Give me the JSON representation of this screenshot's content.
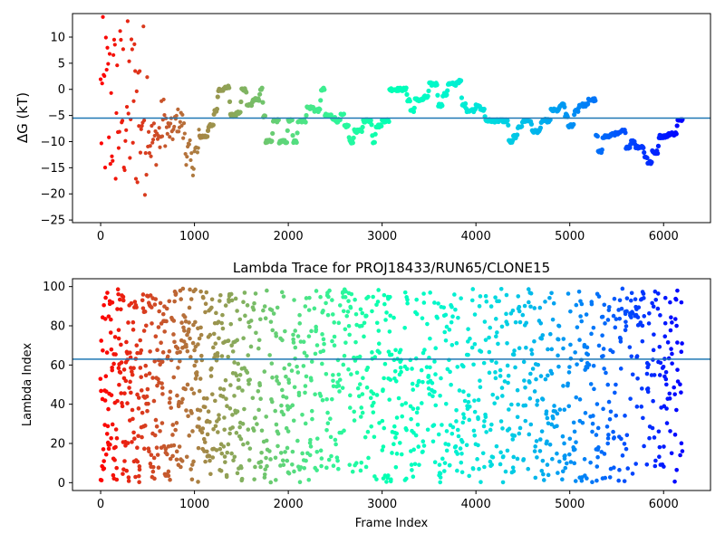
{
  "chart_data": [
    {
      "type": "scatter",
      "title": "",
      "xlabel": "",
      "ylabel": "ΔG (kT)",
      "xlim": [
        -300,
        6500
      ],
      "ylim": [
        -25.5,
        14.5
      ],
      "xticks": [
        0,
        1000,
        2000,
        3000,
        4000,
        5000,
        6000
      ],
      "yticks": [
        -25,
        -20,
        -15,
        -10,
        -5,
        0,
        5,
        10
      ],
      "hline": -5.5,
      "hline_color": "#1f77b4",
      "colormap": "rainbow (red at frame 0 → violet at last frame)",
      "n_frames": 6200,
      "segments": [
        [
          0,
          0.9
        ],
        [
          50,
          -4
        ],
        [
          120,
          2
        ],
        [
          180,
          -8
        ],
        [
          250,
          -12
        ],
        [
          330,
          -10
        ],
        [
          400,
          -14
        ],
        [
          470,
          -6
        ],
        [
          520,
          -10
        ],
        [
          600,
          -9
        ],
        [
          650,
          -6
        ],
        [
          700,
          -8
        ],
        [
          800,
          -6
        ],
        [
          880,
          -8
        ],
        [
          900,
          -12
        ],
        [
          960,
          -14
        ],
        [
          1000,
          -12
        ],
        [
          1050,
          -9
        ],
        [
          1150,
          -7
        ],
        [
          1210,
          -4
        ],
        [
          1250,
          0
        ],
        [
          1330,
          0.4
        ],
        [
          1380,
          -5
        ],
        [
          1450,
          -4.5
        ],
        [
          1500,
          0
        ],
        [
          1560,
          -3
        ],
        [
          1620,
          -2
        ],
        [
          1700,
          0
        ],
        [
          1730,
          -5
        ],
        [
          1760,
          -10
        ],
        [
          1840,
          -6
        ],
        [
          1880,
          -6
        ],
        [
          1900,
          -10
        ],
        [
          2000,
          -6
        ],
        [
          2050,
          -10
        ],
        [
          2100,
          -6
        ],
        [
          2200,
          -3.5
        ],
        [
          2280,
          -4
        ],
        [
          2350,
          0
        ],
        [
          2390,
          -5
        ],
        [
          2470,
          -5.5
        ],
        [
          2500,
          -6
        ],
        [
          2560,
          -5
        ],
        [
          2600,
          -7
        ],
        [
          2650,
          -10
        ],
        [
          2700,
          -8
        ],
        [
          2800,
          -6
        ],
        [
          2900,
          -10
        ],
        [
          2930,
          -7
        ],
        [
          3000,
          -6
        ],
        [
          3050,
          -6
        ],
        [
          3080,
          0
        ],
        [
          3200,
          0
        ],
        [
          3270,
          -2
        ],
        [
          3300,
          -4
        ],
        [
          3350,
          -2
        ],
        [
          3450,
          -1.5
        ],
        [
          3500,
          1
        ],
        [
          3600,
          -3
        ],
        [
          3650,
          -1
        ],
        [
          3700,
          1
        ],
        [
          3800,
          1.5
        ],
        [
          3850,
          -3
        ],
        [
          3900,
          -4
        ],
        [
          4000,
          -3
        ],
        [
          4050,
          -4
        ],
        [
          4100,
          -6
        ],
        [
          4200,
          -6
        ],
        [
          4300,
          -6
        ],
        [
          4350,
          -10
        ],
        [
          4400,
          -9
        ],
        [
          4450,
          -7
        ],
        [
          4500,
          -6
        ],
        [
          4600,
          -8
        ],
        [
          4700,
          -6
        ],
        [
          4750,
          -6
        ],
        [
          4800,
          -4
        ],
        [
          4900,
          -3
        ],
        [
          4950,
          -5
        ],
        [
          4980,
          -7
        ],
        [
          5050,
          -4
        ],
        [
          5100,
          -3
        ],
        [
          5150,
          -3
        ],
        [
          5200,
          -2
        ],
        [
          5250,
          -2
        ],
        [
          5280,
          -9
        ],
        [
          5300,
          -12
        ],
        [
          5350,
          -9
        ],
        [
          5450,
          -8.5
        ],
        [
          5550,
          -8
        ],
        [
          5600,
          -11
        ],
        [
          5650,
          -10
        ],
        [
          5700,
          -11
        ],
        [
          5800,
          -13
        ],
        [
          5830,
          -14
        ],
        [
          5880,
          -12
        ],
        [
          5950,
          -9
        ],
        [
          6050,
          -8.5
        ],
        [
          6150,
          -6
        ],
        [
          6200,
          -5.5
        ]
      ]
    },
    {
      "type": "scatter",
      "title": "Lambda Trace for PROJ18433/RUN65/CLONE15",
      "xlabel": "Frame Index",
      "ylabel": "Lambda Index",
      "xlim": [
        -300,
        6500
      ],
      "ylim": [
        -4,
        104
      ],
      "xticks": [
        0,
        1000,
        2000,
        3000,
        4000,
        5000,
        6000
      ],
      "yticks": [
        0,
        20,
        40,
        60,
        80,
        100
      ],
      "hline": 63,
      "hline_color": "#1f77b4",
      "colormap": "rainbow (red at frame 0 → violet at last frame)",
      "n_frames": 6200,
      "value_range": [
        0,
        99
      ]
    }
  ]
}
